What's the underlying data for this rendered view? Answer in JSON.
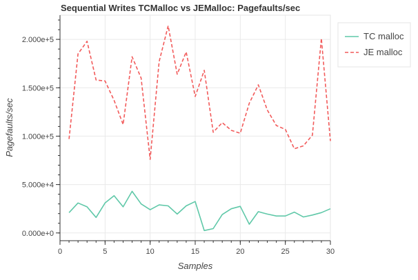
{
  "chart_data": {
    "type": "line",
    "title": "Sequential Writes TCMalloc vs JEMalloc: Pagefaults/sec",
    "xlabel": "Samples",
    "ylabel": "Pagefaults/sec",
    "xlim": [
      0,
      30
    ],
    "ylim": [
      -8000,
      225000
    ],
    "x_ticks": [
      0,
      5,
      10,
      15,
      20,
      25,
      30
    ],
    "x_tick_labels": [
      "0",
      "5",
      "10",
      "15",
      "20",
      "25",
      "30"
    ],
    "y_ticks": [
      0,
      50000,
      100000,
      150000,
      200000
    ],
    "y_tick_labels": [
      "0.000e+0",
      "5.000e+4",
      "1.000e+5",
      "1.500e+5",
      "2.000e+5"
    ],
    "grid": true,
    "legend_position": "top-right",
    "x": [
      1,
      2,
      3,
      4,
      5,
      6,
      7,
      8,
      9,
      10,
      11,
      12,
      13,
      14,
      15,
      16,
      17,
      18,
      19,
      20,
      21,
      22,
      23,
      24,
      25,
      26,
      27,
      28,
      29,
      30
    ],
    "series": [
      {
        "name": "TC malloc",
        "color": "#5fc8a8",
        "dash": "solid",
        "values": [
          21000,
          31000,
          27000,
          16000,
          31000,
          38500,
          27000,
          43000,
          30000,
          24000,
          29000,
          28000,
          19500,
          28000,
          32500,
          2500,
          4500,
          19000,
          25000,
          27500,
          9000,
          22000,
          19500,
          17500,
          17500,
          21500,
          16500,
          18500,
          21000,
          25000
        ]
      },
      {
        "name": "JE malloc",
        "color": "#f25a5a",
        "dash": "dashed",
        "values": [
          97000,
          185000,
          198000,
          158000,
          157000,
          137000,
          112000,
          182000,
          160000,
          76000,
          177000,
          214000,
          164000,
          187000,
          141000,
          168000,
          104000,
          114000,
          106000,
          103000,
          134000,
          153000,
          127000,
          111000,
          107000,
          87000,
          90000,
          101000,
          201000,
          95000
        ]
      }
    ]
  }
}
